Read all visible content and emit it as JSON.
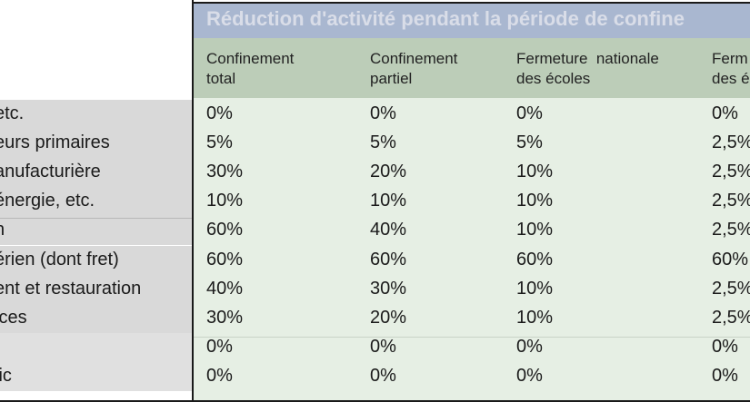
{
  "table": {
    "title": "Réduction d'activité pendant la période de confine",
    "columns": [
      "Confinement\ntotal",
      "Confinement\npartiel",
      "Fermeture  nationale\ndes écoles",
      "Ferm\ndes é"
    ],
    "rows": [
      {
        "label": " etc.",
        "values": [
          "0%",
          "0%",
          "0%",
          "0%"
        ]
      },
      {
        "label": "eurs primaires",
        "values": [
          "5%",
          "5%",
          "5%",
          "2,5%"
        ]
      },
      {
        "label": "anufacturière",
        "values": [
          "30%",
          "20%",
          "10%",
          "2,5%"
        ]
      },
      {
        "label": "énergie, etc.",
        "values": [
          "10%",
          "10%",
          "10%",
          "2,5%"
        ]
      },
      {
        "label": "n",
        "values": [
          "60%",
          "40%",
          "10%",
          "2,5%"
        ]
      },
      {
        "label": "érien (dont fret)",
        "values": [
          "60%",
          "60%",
          "60%",
          "60%"
        ]
      },
      {
        "label": "ent et restauration",
        "values": [
          "40%",
          "30%",
          "10%",
          "2,5%"
        ]
      },
      {
        "label": "ices",
        "values": [
          "30%",
          "20%",
          "10%",
          "2,5%"
        ]
      },
      {
        "label": "",
        "values": [
          "0%",
          "0%",
          "0%",
          "0%"
        ]
      },
      {
        "label": "lic",
        "values": [
          "0%",
          "0%",
          "0%",
          "0%"
        ]
      }
    ]
  },
  "colors": {
    "title_band": "#a9b7d0",
    "header_band": "#bccdb8",
    "data_bg": "#e6efe4",
    "label_bg_a": "#d9d9d9",
    "label_bg_b": "#e4e4e4"
  }
}
